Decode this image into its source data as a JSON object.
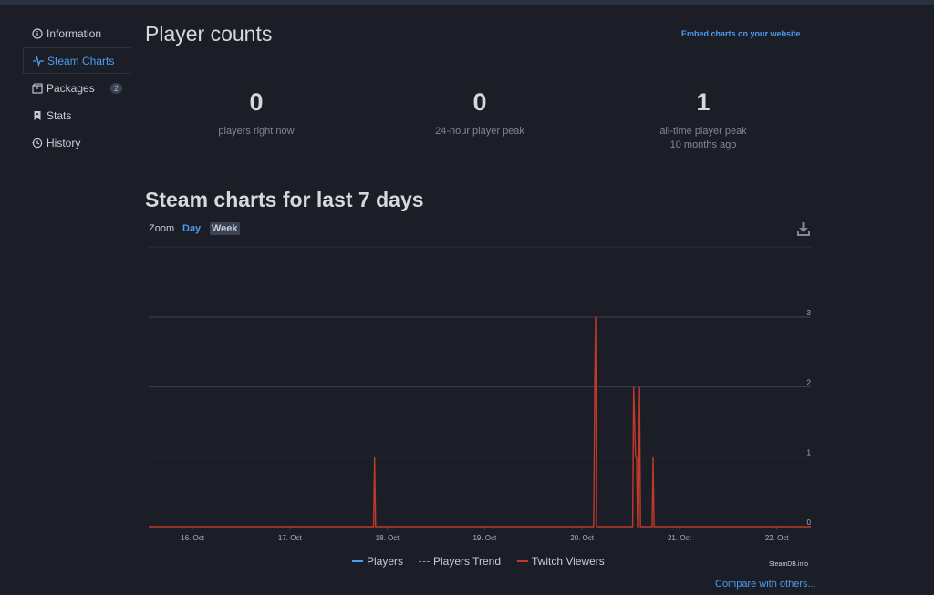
{
  "sidebar": {
    "items": [
      {
        "label": "Information",
        "icon": "info-icon"
      },
      {
        "label": "Steam Charts",
        "icon": "pulse-icon",
        "active": true
      },
      {
        "label": "Packages",
        "icon": "box-icon",
        "badge": "2"
      },
      {
        "label": "Stats",
        "icon": "bookmark-icon"
      },
      {
        "label": "History",
        "icon": "history-icon"
      }
    ]
  },
  "header": {
    "title": "Player counts",
    "embed_link": "Embed charts on your website"
  },
  "stats": [
    {
      "value": "0",
      "label": "players right now"
    },
    {
      "value": "0",
      "label": "24-hour player peak"
    },
    {
      "value": "1",
      "label": "all-time player peak",
      "sub": "10 months ago"
    }
  ],
  "charts_section": {
    "title": "Steam charts for last 7 days",
    "zoom_label": "Zoom",
    "zoom_day": "Day",
    "zoom_week": "Week",
    "download_icon": "download-icon"
  },
  "chart_data": {
    "type": "line",
    "x_tick_labels": [
      "16. Oct",
      "17. Oct",
      "18. Oct",
      "19. Oct",
      "20. Oct",
      "21. Oct",
      "22. Oct"
    ],
    "y_tick_labels": [
      "0",
      "1",
      "2",
      "3"
    ],
    "ylim": [
      0,
      3
    ],
    "xlim": [
      15.55,
      22.35
    ],
    "grid": true,
    "legend_position": "bottom-center",
    "series": [
      {
        "name": "Players",
        "color": "#4c9cf0",
        "style": "solid",
        "points": []
      },
      {
        "name": "Players Trend",
        "color": "#8a8f98",
        "style": "dashed",
        "points": []
      },
      {
        "name": "Twitch Viewers",
        "color": "#c0392b",
        "style": "solid",
        "points": [
          [
            15.55,
            0
          ],
          [
            17.86,
            0
          ],
          [
            17.87,
            1
          ],
          [
            17.88,
            0
          ],
          [
            20.12,
            0
          ],
          [
            20.13,
            2
          ],
          [
            20.14,
            3
          ],
          [
            20.15,
            0
          ],
          [
            20.52,
            0
          ],
          [
            20.53,
            2
          ],
          [
            20.55,
            1
          ],
          [
            20.56,
            1
          ],
          [
            20.57,
            0
          ],
          [
            20.58,
            0
          ],
          [
            20.59,
            2
          ],
          [
            20.6,
            0
          ],
          [
            20.72,
            0
          ],
          [
            20.73,
            1
          ],
          [
            20.74,
            0
          ],
          [
            22.35,
            0
          ]
        ]
      }
    ]
  },
  "legend": {
    "players": "Players",
    "trend": "Players Trend",
    "twitch": "Twitch Viewers"
  },
  "credit": "SteamDB.info",
  "compare_link": "Compare with others..."
}
